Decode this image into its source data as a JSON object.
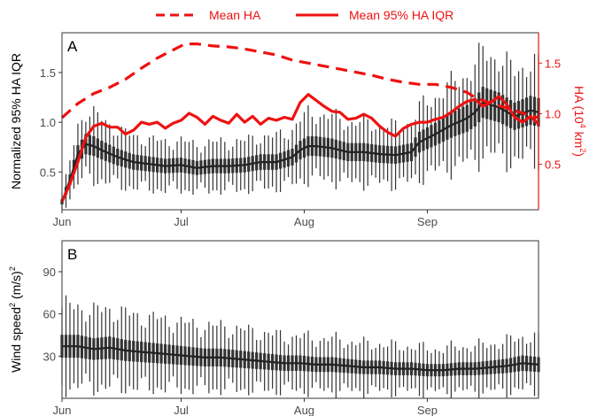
{
  "colors": {
    "red": "#ee1111",
    "dark": "#333333",
    "frame": "#333333",
    "tick_text": "#4d4d4d"
  },
  "legend": {
    "items": [
      {
        "label": "Mean HA",
        "style": "dashed",
        "color": "#ee1111"
      },
      {
        "label": "Mean 95% HA IQR",
        "style": "solid",
        "color": "#ee1111"
      }
    ]
  },
  "x_ticks": [
    "Jun",
    "Jul",
    "Aug",
    "Sep"
  ],
  "chart_data": [
    {
      "panel": "A",
      "type": "line",
      "ylabel": "Normalized 95% HA IQR",
      "y2label_pre": "HA (10",
      "y2label_sup1": "4",
      "y2label_mid": " km",
      "y2label_sup2": "2",
      "y2label_post": ")",
      "xlim_days": [
        0,
        120
      ],
      "ylim": [
        0.12,
        1.9
      ],
      "yticks": [
        0.5,
        1.0,
        1.5
      ],
      "ytick_labels": [
        "0.5",
        "1.0",
        "1.5"
      ],
      "y2lim": [
        0.05,
        1.8
      ],
      "y2ticks": [
        0.5,
        1.0,
        1.5
      ],
      "y2tick_labels": [
        "0.5",
        "1.0",
        "1.5"
      ],
      "series": [
        {
          "name": "Mean HA",
          "axis": "right",
          "style": "dashed",
          "points": [
            [
              0,
              0.96
            ],
            [
              4,
              1.1
            ],
            [
              8,
              1.2
            ],
            [
              12,
              1.26
            ],
            [
              16,
              1.34
            ],
            [
              20,
              1.45
            ],
            [
              24,
              1.55
            ],
            [
              28,
              1.63
            ],
            [
              31,
              1.69
            ],
            [
              34,
              1.69
            ],
            [
              38,
              1.67
            ],
            [
              42,
              1.66
            ],
            [
              46,
              1.64
            ],
            [
              50,
              1.61
            ],
            [
              54,
              1.58
            ],
            [
              58,
              1.53
            ],
            [
              62,
              1.5
            ],
            [
              66,
              1.47
            ],
            [
              70,
              1.44
            ],
            [
              74,
              1.41
            ],
            [
              78,
              1.38
            ],
            [
              82,
              1.34
            ],
            [
              86,
              1.31
            ],
            [
              90,
              1.29
            ],
            [
              94,
              1.29
            ],
            [
              98,
              1.26
            ],
            [
              102,
              1.21
            ],
            [
              104,
              1.16
            ],
            [
              106,
              1.13
            ],
            [
              110,
              1.08
            ],
            [
              114,
              1.03
            ],
            [
              118,
              0.98
            ],
            [
              120,
              0.96
            ]
          ]
        },
        {
          "name": "Mean 95% HA IQR",
          "axis": "left",
          "style": "solid",
          "points": [
            [
              0,
              0.2
            ],
            [
              2,
              0.38
            ],
            [
              4,
              0.6
            ],
            [
              6,
              0.85
            ],
            [
              8,
              0.96
            ],
            [
              10,
              0.99
            ],
            [
              12,
              0.95
            ],
            [
              14,
              0.95
            ],
            [
              16,
              0.88
            ],
            [
              18,
              0.92
            ],
            [
              20,
              1.0
            ],
            [
              22,
              0.98
            ],
            [
              24,
              1.0
            ],
            [
              26,
              0.94
            ],
            [
              28,
              0.99
            ],
            [
              30,
              1.02
            ],
            [
              32,
              1.09
            ],
            [
              34,
              1.05
            ],
            [
              36,
              0.98
            ],
            [
              38,
              1.06
            ],
            [
              40,
              1.02
            ],
            [
              42,
              0.99
            ],
            [
              44,
              1.08
            ],
            [
              46,
              1.0
            ],
            [
              48,
              1.06
            ],
            [
              50,
              0.98
            ],
            [
              52,
              1.04
            ],
            [
              54,
              1.02
            ],
            [
              56,
              1.05
            ],
            [
              58,
              1.03
            ],
            [
              60,
              1.2
            ],
            [
              62,
              1.28
            ],
            [
              64,
              1.22
            ],
            [
              66,
              1.16
            ],
            [
              68,
              1.11
            ],
            [
              70,
              1.1
            ],
            [
              72,
              1.03
            ],
            [
              74,
              1.04
            ],
            [
              76,
              1.08
            ],
            [
              78,
              1.04
            ],
            [
              80,
              0.96
            ],
            [
              82,
              0.9
            ],
            [
              84,
              0.86
            ],
            [
              86,
              0.94
            ],
            [
              88,
              0.98
            ],
            [
              90,
              1.0
            ],
            [
              92,
              1.0
            ],
            [
              94,
              1.03
            ],
            [
              96,
              1.05
            ],
            [
              98,
              1.1
            ],
            [
              100,
              1.16
            ],
            [
              102,
              1.21
            ],
            [
              104,
              1.23
            ],
            [
              106,
              1.16
            ],
            [
              108,
              1.2
            ],
            [
              110,
              1.26
            ],
            [
              112,
              1.18
            ],
            [
              114,
              1.05
            ],
            [
              116,
              1.0
            ],
            [
              118,
              1.06
            ],
            [
              120,
              0.98
            ]
          ]
        },
        {
          "name": "",
          "axis": "left",
          "style": "boxes",
          "points": [
            [
              0,
              0.2
            ],
            [
              2,
              0.42
            ],
            [
              4,
              0.68
            ],
            [
              6,
              0.78
            ],
            [
              8,
              0.76
            ],
            [
              10,
              0.72
            ],
            [
              14,
              0.65
            ],
            [
              18,
              0.6
            ],
            [
              22,
              0.58
            ],
            [
              26,
              0.56
            ],
            [
              30,
              0.57
            ],
            [
              34,
              0.54
            ],
            [
              38,
              0.56
            ],
            [
              42,
              0.56
            ],
            [
              46,
              0.57
            ],
            [
              50,
              0.6
            ],
            [
              54,
              0.6
            ],
            [
              58,
              0.65
            ],
            [
              60,
              0.72
            ],
            [
              62,
              0.76
            ],
            [
              64,
              0.76
            ],
            [
              68,
              0.74
            ],
            [
              72,
              0.7
            ],
            [
              76,
              0.7
            ],
            [
              80,
              0.68
            ],
            [
              84,
              0.67
            ],
            [
              88,
              0.7
            ],
            [
              90,
              0.8
            ],
            [
              94,
              0.88
            ],
            [
              98,
              0.97
            ],
            [
              102,
              1.04
            ],
            [
              104,
              1.1
            ],
            [
              106,
              1.2
            ],
            [
              110,
              1.15
            ],
            [
              114,
              1.06
            ],
            [
              118,
              1.12
            ],
            [
              120,
              1.1
            ]
          ],
          "spread_ratio": 0.42,
          "box_ratio": 0.13
        }
      ]
    },
    {
      "panel": "B",
      "type": "line",
      "ylabel_pre": "Wind speed",
      "ylabel_sup1": "2",
      "ylabel_post": " (m/s)",
      "ylabel_sup2": "2",
      "xlim_days": [
        0,
        120
      ],
      "ylim": [
        0,
        112
      ],
      "yticks": [
        30,
        60,
        90
      ],
      "ytick_labels": [
        "30",
        "60",
        "90"
      ],
      "series": [
        {
          "name": "",
          "style": "boxes",
          "points": [
            [
              0,
              37
            ],
            [
              4,
              37
            ],
            [
              8,
              35
            ],
            [
              12,
              36
            ],
            [
              16,
              34
            ],
            [
              20,
              33
            ],
            [
              24,
              32
            ],
            [
              28,
              31
            ],
            [
              32,
              30
            ],
            [
              36,
              29
            ],
            [
              40,
              29
            ],
            [
              44,
              28
            ],
            [
              48,
              27
            ],
            [
              52,
              26
            ],
            [
              56,
              25
            ],
            [
              60,
              25
            ],
            [
              64,
              24
            ],
            [
              68,
              24
            ],
            [
              72,
              23
            ],
            [
              76,
              22
            ],
            [
              80,
              22
            ],
            [
              84,
              21
            ],
            [
              88,
              21
            ],
            [
              92,
              20
            ],
            [
              96,
              20
            ],
            [
              100,
              21
            ],
            [
              104,
              21
            ],
            [
              108,
              22
            ],
            [
              112,
              23
            ],
            [
              116,
              25
            ],
            [
              120,
              24
            ]
          ],
          "spread_ratio": 0.75,
          "box_ratio": 0.22
        }
      ]
    }
  ]
}
